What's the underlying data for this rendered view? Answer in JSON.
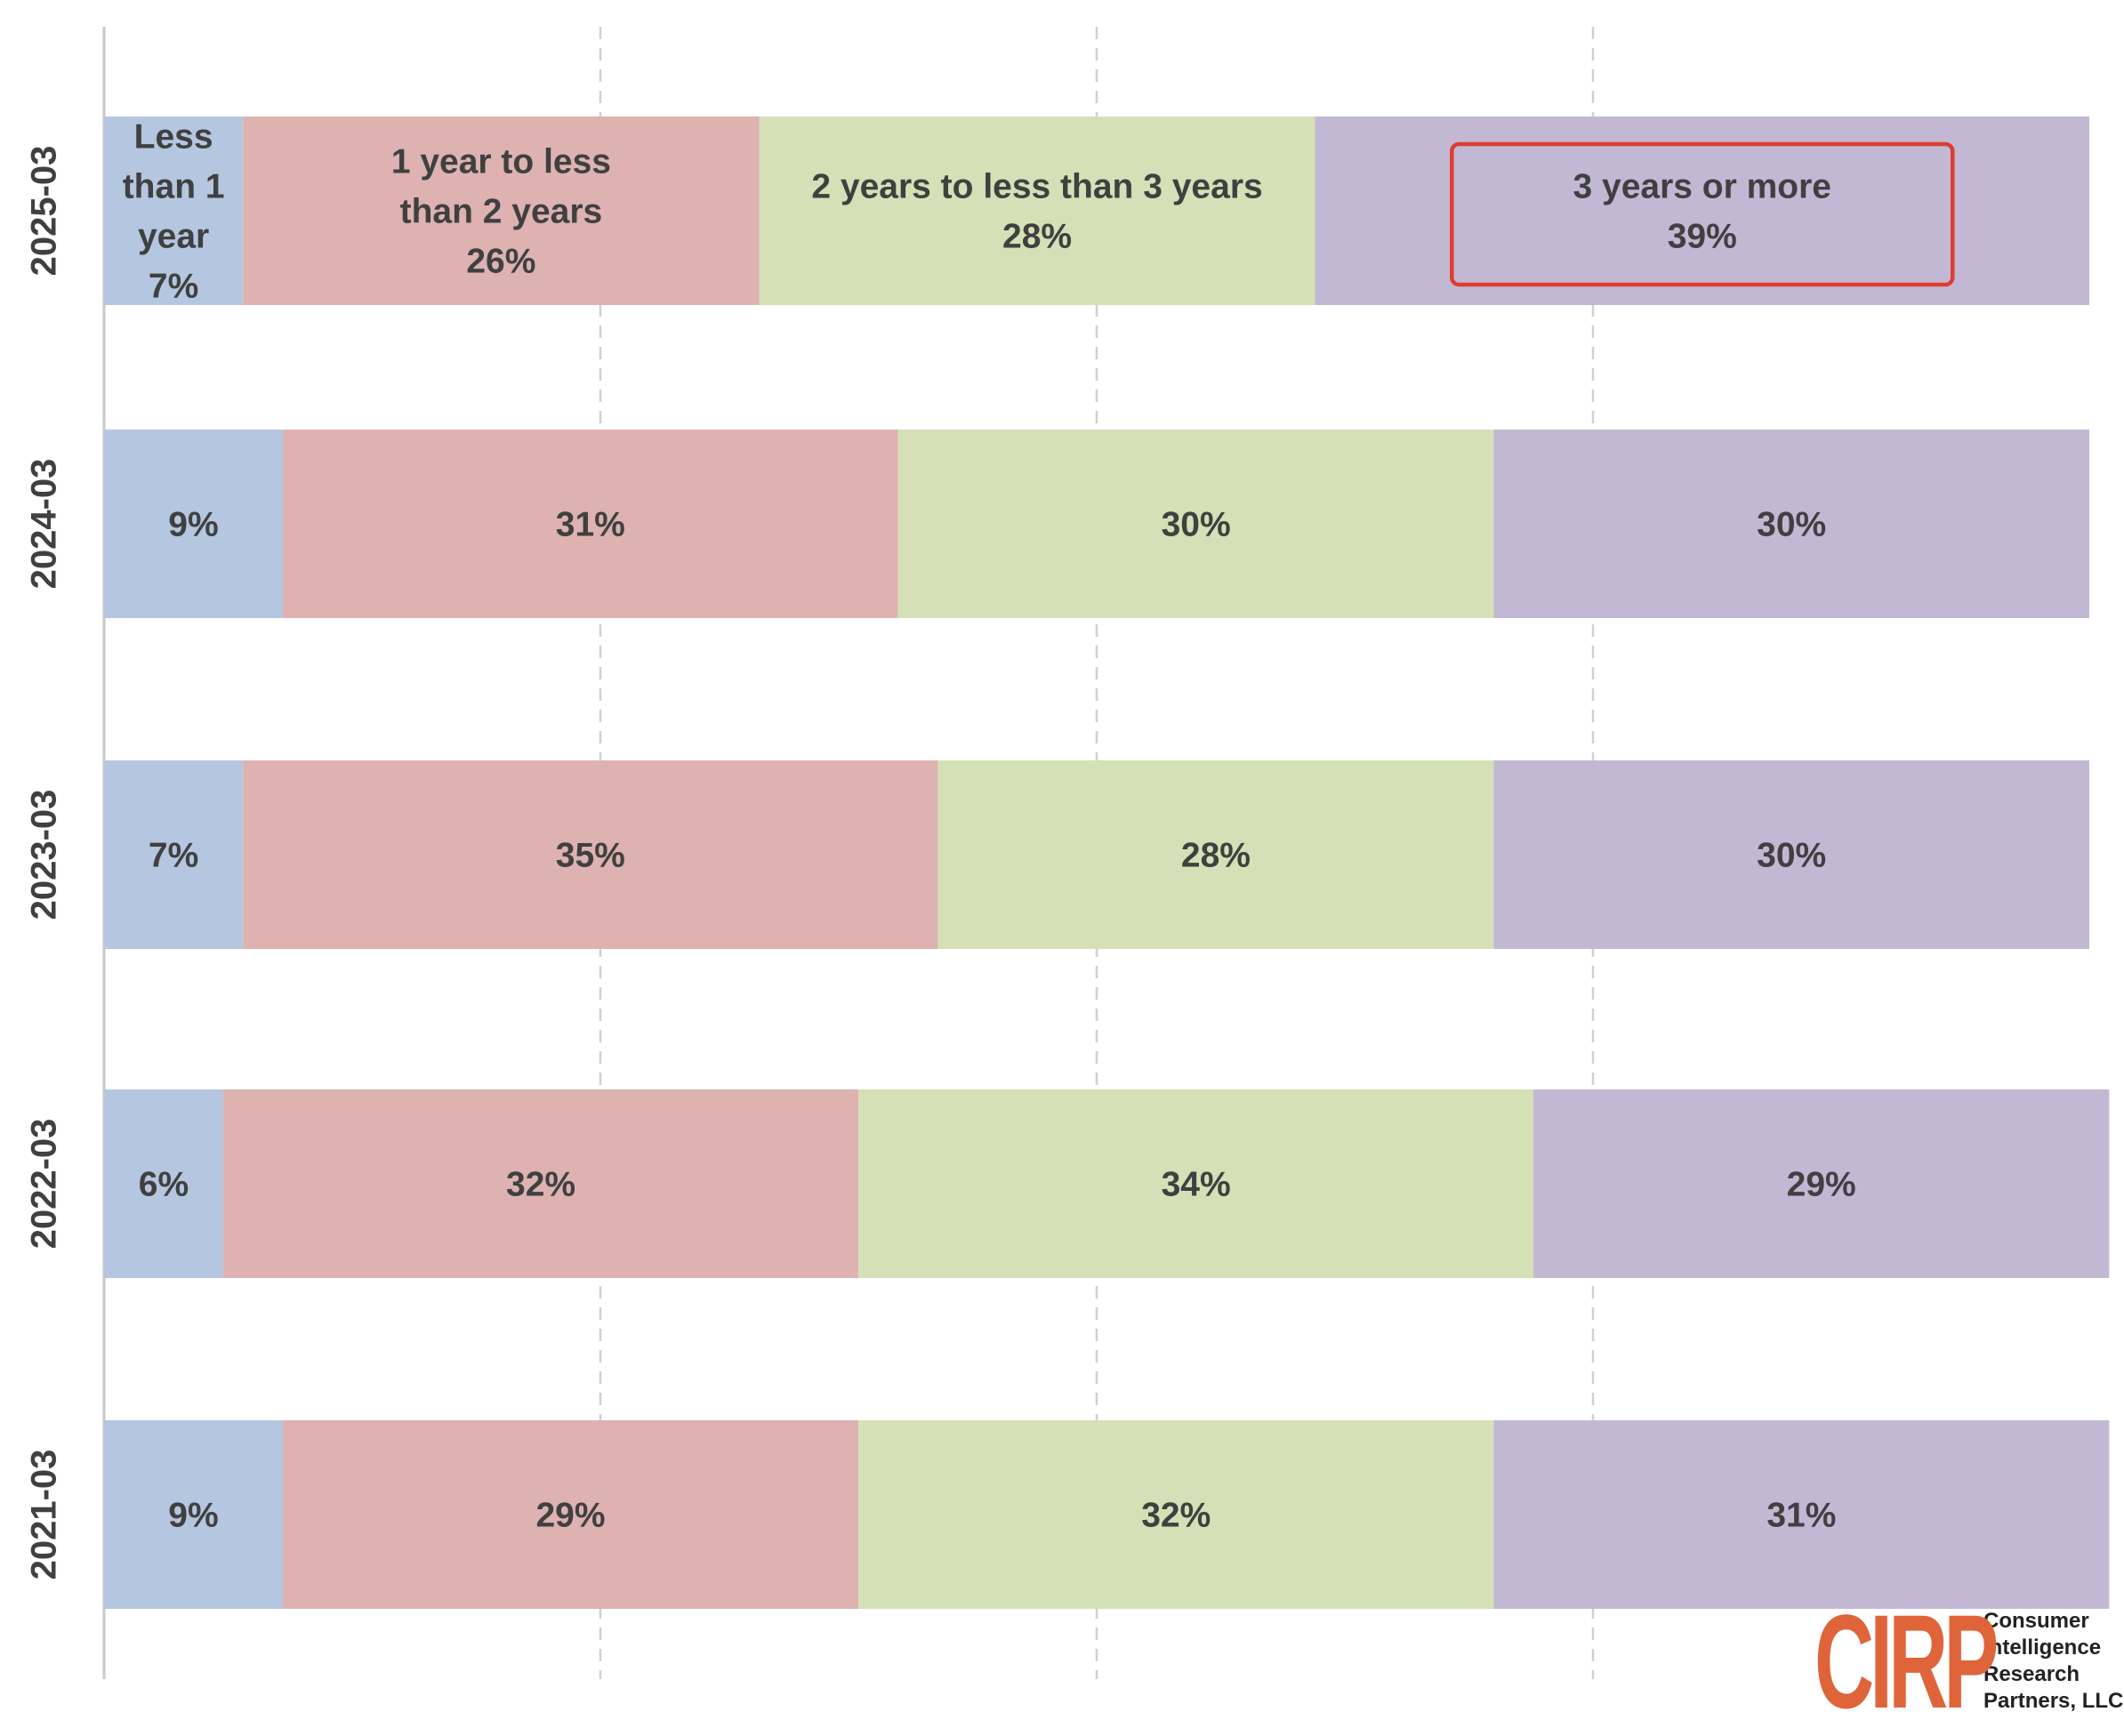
{
  "chart_data": {
    "type": "bar",
    "orientation": "horizontal",
    "stacked": "100%",
    "categories": [
      "2025-03",
      "2024-03",
      "2023-03",
      "2022-03",
      "2021-03"
    ],
    "series": [
      {
        "name": "Less than 1 year",
        "color": "#b4c6e0",
        "values": [
          7,
          9,
          7,
          6,
          9
        ]
      },
      {
        "name": "1 year to less than 2 years",
        "color": "#ddb2b1",
        "values": [
          26,
          31,
          35,
          32,
          29
        ]
      },
      {
        "name": "2 years to less than 3 years",
        "color": "#d5e0b6",
        "values": [
          28,
          30,
          28,
          34,
          32
        ]
      },
      {
        "name": "3 years or more",
        "color": "#c3b8d4",
        "values": [
          39,
          30,
          30,
          29,
          31
        ]
      }
    ],
    "top_bar_labels": [
      [
        "Less",
        "than 1",
        "year",
        "7%"
      ],
      [
        "1 year to less",
        "than 2 years",
        "26%"
      ],
      [
        "2 years to less than 3 years",
        "28%"
      ],
      [
        "3 years or more",
        "39%"
      ]
    ],
    "value_labels": [
      [
        "9%",
        "31%",
        "30%",
        "30%"
      ],
      [
        "7%",
        "35%",
        "28%",
        "30%"
      ],
      [
        "6%",
        "32%",
        "34%",
        "29%"
      ],
      [
        "9%",
        "29%",
        "32%",
        "31%"
      ]
    ],
    "highlight": {
      "category": "2025-03",
      "series": "3 years or more",
      "color": "#e03c31"
    },
    "xlim": [
      0,
      100
    ],
    "grid": "vertical dashed",
    "legend": "none"
  },
  "logo": {
    "mark": "CIRP",
    "lines": [
      "Consumer",
      "Intelligence",
      "Research",
      "Partners, LLC"
    ],
    "color": "#e0643a"
  }
}
